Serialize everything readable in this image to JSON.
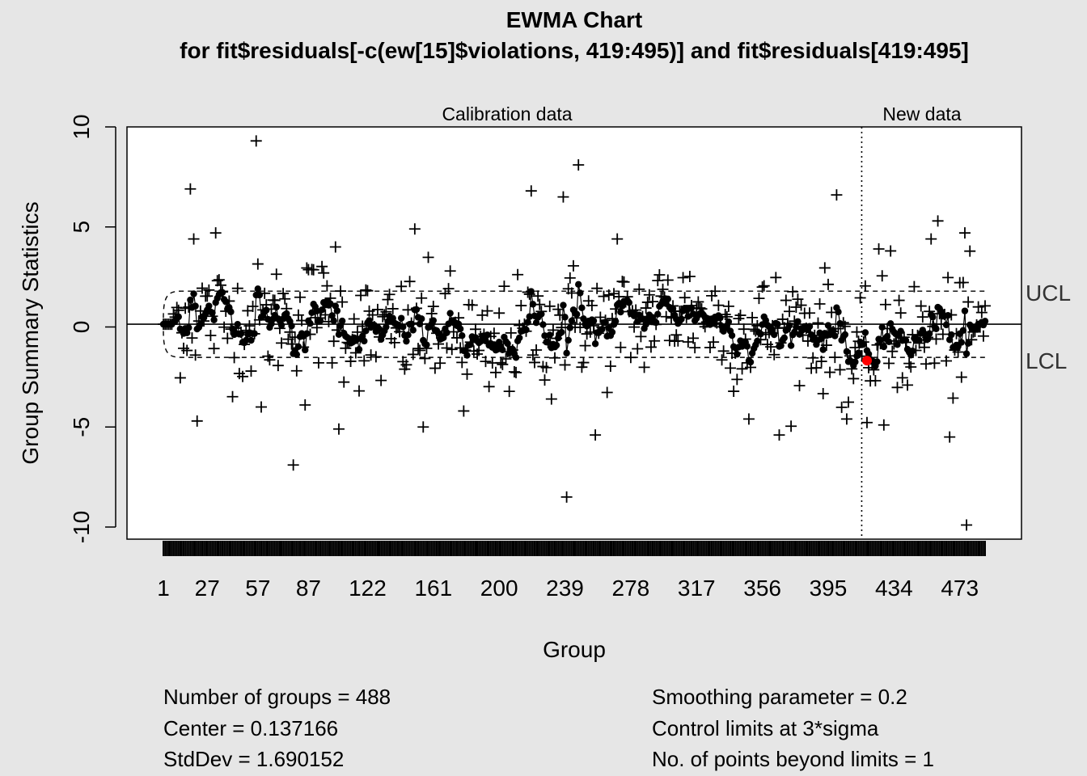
{
  "chart_data": {
    "type": "scatter",
    "title": "EWMA Chart",
    "subtitle": "for fit$residuals[-c(ew[15]$violations, 419:495)] and fit$residuals[419:495]",
    "xlabel": "Group",
    "ylabel": "Group Summary Statistics",
    "xlim": [
      1,
      488
    ],
    "ylim": [
      -10,
      10
    ],
    "y_ticks": [
      "-10",
      "-5",
      "0",
      "5",
      "10"
    ],
    "x_ticks": [
      "1",
      "27",
      "57",
      "87",
      "122",
      "161",
      "200",
      "239",
      "278",
      "317",
      "356",
      "395",
      "434",
      "473"
    ],
    "region_labels": {
      "calibration": "Calibration data",
      "new": "New data"
    },
    "new_data_start": 412,
    "center": 0.137166,
    "limits": {
      "ucl_label": "UCL",
      "lcl_label": "LCL",
      "ucl": 1.79,
      "lcl": -1.52
    },
    "points_beyond_limits": [
      {
        "group": 418,
        "value": -1.68
      }
    ],
    "residuals_notable": [
      {
        "group": 56,
        "value": 9.3
      },
      {
        "group": 247,
        "value": 8.1
      },
      {
        "group": 17,
        "value": 6.9
      },
      {
        "group": 219,
        "value": 6.8
      },
      {
        "group": 238,
        "value": 6.5
      },
      {
        "group": 400,
        "value": 6.6
      },
      {
        "group": 460,
        "value": 5.3
      },
      {
        "group": 476,
        "value": 4.7
      },
      {
        "group": 150,
        "value": 4.9
      },
      {
        "group": 32,
        "value": 4.7
      },
      {
        "group": 19,
        "value": 4.4
      },
      {
        "group": 270,
        "value": 4.4
      },
      {
        "group": 103,
        "value": 4.0
      },
      {
        "group": 456,
        "value": 4.4
      },
      {
        "group": 425,
        "value": 3.9
      },
      {
        "group": 432,
        "value": 3.8
      },
      {
        "group": 240,
        "value": -8.5
      },
      {
        "group": 78,
        "value": -6.9
      },
      {
        "group": 477,
        "value": -9.9
      },
      {
        "group": 257,
        "value": -5.4
      },
      {
        "group": 366,
        "value": -5.4
      },
      {
        "group": 467,
        "value": -5.5
      },
      {
        "group": 105,
        "value": -5.1
      },
      {
        "group": 155,
        "value": -5.0
      },
      {
        "group": 348,
        "value": -4.6
      },
      {
        "group": 406,
        "value": -4.6
      },
      {
        "group": 428,
        "value": -4.9
      },
      {
        "group": 21,
        "value": -4.7
      },
      {
        "group": 59,
        "value": -4.0
      },
      {
        "group": 85,
        "value": -3.9
      },
      {
        "group": 231,
        "value": -3.6
      },
      {
        "group": 179,
        "value": -4.2
      }
    ],
    "ewma_series": "smoothed EWMA statistic, mostly between -1.5 and 1.5"
  },
  "summary": {
    "left": [
      "Number of groups = 488",
      "Center = 0.137166",
      "StdDev = 1.690152"
    ],
    "right": [
      "Smoothing parameter =  0.2",
      "Control limits at 3*sigma",
      "No. of points beyond limits = 1"
    ]
  },
  "colors": {
    "background": "#e6e6e6",
    "plot_bg": "#ffffff",
    "violation": "#ff0000",
    "ink": "#000000"
  }
}
